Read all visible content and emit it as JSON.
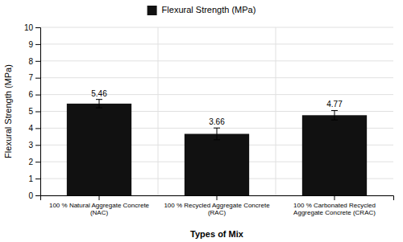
{
  "chart_data": {
    "type": "bar",
    "categories": [
      "100 % Natural Aggregate Concrete\n(NAC)",
      "100 % Recycled Aggregate Concrete\n(RAC)",
      "100 % Carbonated Recycled\nAggregate Concrete (CRAC)"
    ],
    "series": [
      {
        "name": "Flexural Strength (MPa)",
        "color": "#111111",
        "values": [
          5.46,
          3.66,
          4.77
        ],
        "errors": [
          0.25,
          0.35,
          0.28
        ]
      }
    ],
    "ylabel": "Flexural Strength (MPa)",
    "xlabel": "Types of Mix",
    "ylim": [
      0,
      10
    ],
    "yticks": [
      0,
      1,
      2,
      3,
      4,
      5,
      6,
      7,
      8,
      9,
      10
    ],
    "grid": true,
    "legend": "top",
    "data_labels": true
  }
}
